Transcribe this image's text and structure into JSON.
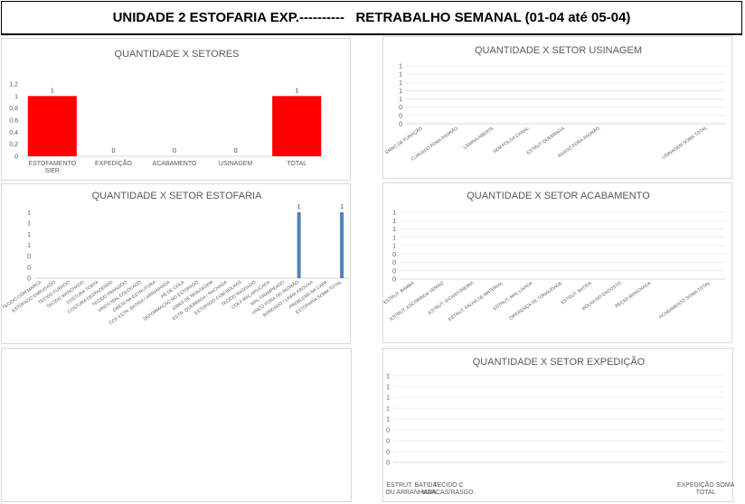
{
  "page": {
    "title": "UNIDADE 2 ESTOFARIA EXP.----------   RETRABALHO SEMANAL (01-04 até 05-04)"
  },
  "chart_data": [
    {
      "id": "setores",
      "type": "bar",
      "title": "QUANTIDADE X SETORES",
      "categories": [
        "ESTOFAMENTO SIER",
        "EXPEDIÇÃO",
        "ACABAMENTO",
        "USINAGEM",
        "TOTAL"
      ],
      "values": [
        1,
        0,
        0,
        0,
        1
      ],
      "data_labels": [
        "1",
        "0",
        "0",
        "0",
        "1"
      ],
      "yticks": [
        "0",
        "0,2",
        "0,4",
        "0,6",
        "0,8",
        "1",
        "1,2"
      ],
      "ylim": [
        0,
        1.2
      ],
      "color": "#ff0000",
      "grid": false
    },
    {
      "id": "usinagem",
      "type": "bar",
      "title": "QUANTIDADE X SETOR USINAGEM",
      "categories": [
        "ERRO DE FURAÇÃO.",
        "CURVADO FORA PADRÃO.",
        "LÂMINA ABERTA.",
        "SEM FOLGA CANAL.",
        "ESTRUT QUEBRADA.",
        "RASGO FORA PADRÃO.",
        "",
        "",
        "USINAGEM SOMA TOTAL"
      ],
      "values": [
        0,
        0,
        0,
        0,
        0,
        0,
        0,
        0,
        0
      ],
      "yticks": [
        "0",
        "0",
        "0",
        "1",
        "1",
        "1",
        "1",
        "1"
      ],
      "ylim": [
        0,
        1
      ],
      "color": "#4f81bd",
      "grid": true
    },
    {
      "id": "estofaria",
      "type": "bar",
      "title": "QUANTIDADE X SETOR ESTOFARIA",
      "categories": [
        "TECIDO COM MARCA",
        "ESTOFADO ENRUGADO",
        "TECIDO FURADO",
        "TECIDO MANCHADO",
        "COSTURA TORTA",
        "COSTURA DESFAZENDO",
        "TECIDO FRANZIDO",
        "VINCO MAL COLOCADO",
        "GRETA NA ESTRUTURA",
        "CCE ESTR. BATIDA / ARRANHADA",
        "PÉ DE COLA",
        "DEFORMAÇÃO NO ESTOFADO",
        "ERRO DE MONTAGEM",
        "ESTR. QUEBRADA / RACHADA",
        "ESTOFADO COM BOLHAS",
        "TECIDO RASGADO",
        "COLA MAL APLICADA",
        "MAL GRAMPEADO",
        "VINCO FORA DO PADRÃO",
        "BORDADO / LINHA FROUXA",
        "PROBLEMA NA CAPA",
        "ESTOFARIA SOMA TOTAL"
      ],
      "values": [
        0,
        0,
        0,
        0,
        0,
        0,
        0,
        0,
        0,
        0,
        0,
        0,
        0,
        0,
        0,
        0,
        0,
        0,
        1,
        0,
        0,
        1
      ],
      "data_labels": [
        "",
        "",
        "",
        "",
        "",
        "",
        "",
        "",
        "",
        "",
        "",
        "",
        "",
        "",
        "",
        "",
        "",
        "",
        "1",
        "",
        "",
        "1"
      ],
      "yticks": [
        "0",
        "0",
        "0",
        "1",
        "1",
        "1",
        "1"
      ],
      "ylim": [
        0,
        1
      ],
      "color": "#4f81bd",
      "grid": false
    },
    {
      "id": "acabamento",
      "type": "bar",
      "title": "QUANTIDADE X SETOR ACABAMENTO",
      "categories": [
        "ESTRUT. BAMBA",
        "ESTRUT. ESCORRIDA VERNIZ",
        "ESTRUT. S/CANTONEIRA",
        "ESTRUT. FALHA DE MATERIAL",
        "ESTRUT. MAL LIXADA",
        "DIFERENÇA DE TONALIDADE",
        "ESTRUT. BATIDA",
        "BOLHA NO ENCOSTO",
        "PEÇAS MANCHADA",
        "",
        "ACABAMENTO SOMA TOTAL"
      ],
      "values": [
        0,
        0,
        0,
        0,
        0,
        0,
        0,
        0,
        0,
        0,
        0
      ],
      "yticks": [
        "0",
        "0",
        "0",
        "0",
        "1",
        "1",
        "1",
        "1",
        "1"
      ],
      "ylim": [
        0,
        1
      ],
      "color": "#4f81bd",
      "grid": true
    },
    {
      "id": "expedicao",
      "type": "bar",
      "title": "QUANTIDADE X SETOR EXPEDIÇÃO",
      "categories": [
        "ESTRUT. BATIDA OU ARRANHADA.",
        "TECIDO C MARCAS/RASGO.",
        "",
        "",
        "",
        "",
        "",
        "",
        "EXPEDIÇÃO SOMA TOTAL"
      ],
      "values": [
        0,
        0,
        0,
        0,
        0,
        0,
        0,
        0,
        0
      ],
      "yticks": [
        "0",
        "0",
        "0",
        "0",
        "1",
        "1",
        "1",
        "1",
        "1"
      ],
      "ylim": [
        0,
        1
      ],
      "color": "#4f81bd",
      "grid": true
    }
  ]
}
